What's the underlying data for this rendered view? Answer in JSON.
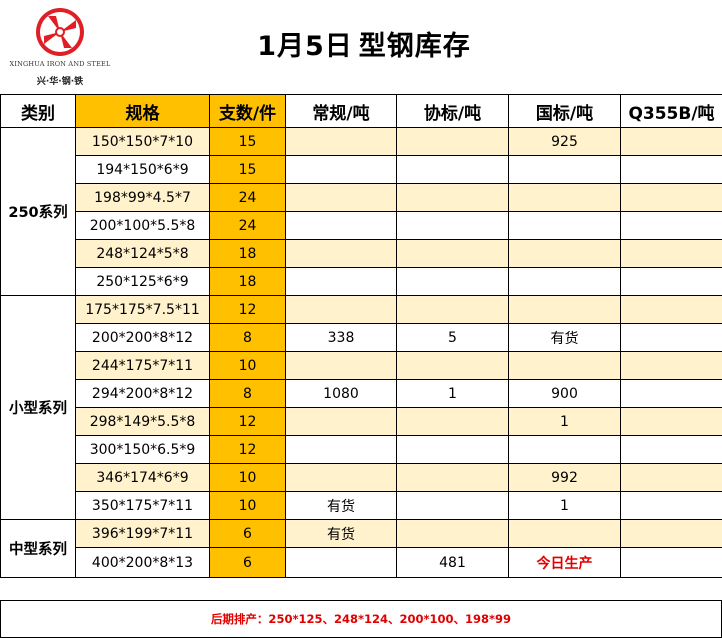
{
  "logo": {
    "company_en": "XINGHUA IRON AND STEEL",
    "company_cn": "兴·华·钢·铁",
    "brand_color": "#E01E25"
  },
  "title": {
    "date": "1月5日",
    "text": "型钢库存"
  },
  "table": {
    "headers": {
      "category": "类别",
      "spec": "规格",
      "pieces": "支数/件",
      "regular": "常规/吨",
      "association": "协标/吨",
      "national": "国标/吨",
      "q355b": "Q355B/吨"
    },
    "groups": [
      {
        "category": "250系列",
        "rows": [
          {
            "spec": "150*150*7*10",
            "pieces": "15",
            "regular": "",
            "association": "",
            "national": "925",
            "q355b": ""
          },
          {
            "spec": "194*150*6*9",
            "pieces": "15",
            "regular": "",
            "association": "",
            "national": "",
            "q355b": ""
          },
          {
            "spec": "198*99*4.5*7",
            "pieces": "24",
            "regular": "",
            "association": "",
            "national": "",
            "q355b": ""
          },
          {
            "spec": "200*100*5.5*8",
            "pieces": "24",
            "regular": "",
            "association": "",
            "national": "",
            "q355b": ""
          },
          {
            "spec": "248*124*5*8",
            "pieces": "18",
            "regular": "",
            "association": "",
            "national": "",
            "q355b": ""
          },
          {
            "spec": "250*125*6*9",
            "pieces": "18",
            "regular": "",
            "association": "",
            "national": "",
            "q355b": ""
          }
        ]
      },
      {
        "category": "小型系列",
        "rows": [
          {
            "spec": "175*175*7.5*11",
            "pieces": "12",
            "regular": "",
            "association": "",
            "national": "",
            "q355b": ""
          },
          {
            "spec": "200*200*8*12",
            "pieces": "8",
            "regular": "338",
            "association": "5",
            "national": "有货",
            "q355b": ""
          },
          {
            "spec": "244*175*7*11",
            "pieces": "10",
            "regular": "",
            "association": "",
            "national": "",
            "q355b": ""
          },
          {
            "spec": "294*200*8*12",
            "pieces": "8",
            "regular": "1080",
            "association": "1",
            "national": "900",
            "q355b": ""
          },
          {
            "spec": "298*149*5.5*8",
            "pieces": "12",
            "regular": "",
            "association": "",
            "national": "1",
            "q355b": ""
          },
          {
            "spec": "300*150*6.5*9",
            "pieces": "12",
            "regular": "",
            "association": "",
            "national": "",
            "q355b": ""
          },
          {
            "spec": "346*174*6*9",
            "pieces": "10",
            "regular": "",
            "association": "",
            "national": "992",
            "q355b": ""
          },
          {
            "spec": "350*175*7*11",
            "pieces": "10",
            "regular": "有货",
            "association": "",
            "national": "1",
            "q355b": ""
          }
        ]
      },
      {
        "category": "中型系列",
        "rows": [
          {
            "spec": "396*199*7*11",
            "pieces": "6",
            "regular": "有货",
            "association": "",
            "national": "",
            "q355b": ""
          },
          {
            "spec": "400*200*8*13",
            "pieces": "6",
            "regular": "",
            "association": "481",
            "national": "今日生产",
            "q355b": ""
          }
        ]
      }
    ]
  },
  "footer": {
    "note": "后期排产：250*125、248*124、200*100、198*99"
  },
  "colors": {
    "header_orange": "#FFC000",
    "row_cream": "#FFF2CC",
    "alert_red": "#E00000"
  }
}
